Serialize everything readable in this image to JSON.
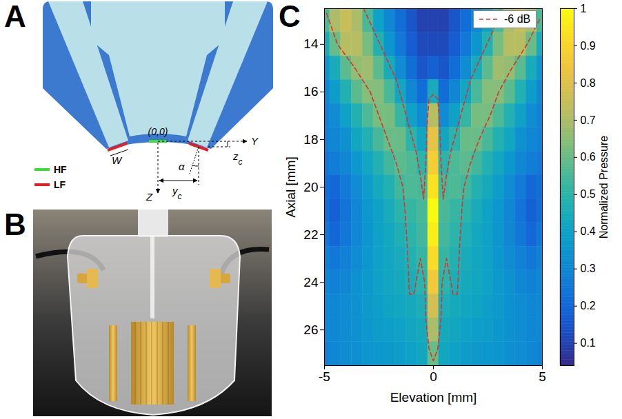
{
  "panel_labels": [
    "A",
    "B",
    "C"
  ],
  "diagram": {
    "labels": {
      "origin": "(0,0)",
      "y_axis": "Y",
      "z_axis": "Z",
      "width": "W",
      "angle": "α",
      "y_offset": {
        "base": "y",
        "sub": "c"
      },
      "z_offset": {
        "base": "z",
        "sub": "c"
      }
    },
    "legend": [
      {
        "name": "HF",
        "color": "#3ddc3d"
      },
      {
        "name": "LF",
        "color": "#e0202a"
      }
    ]
  },
  "chart_data": {
    "type": "heatmap",
    "xlabel": "Elevation [mm]",
    "ylabel": "Axial [mm]",
    "xlim": [
      -5,
      5
    ],
    "xticks": [
      -5,
      0,
      5
    ],
    "ylim": [
      27.5,
      12.5
    ],
    "yticks": [
      14,
      16,
      18,
      20,
      22,
      24,
      26
    ],
    "x": [
      -5,
      -4.5,
      -4,
      -3.5,
      -3,
      -2.5,
      -2,
      -1.5,
      -1,
      -0.5,
      0,
      0.5,
      1,
      1.5,
      2,
      2.5,
      3,
      3.5,
      4,
      4.5,
      5
    ],
    "y": [
      13,
      14,
      15,
      16,
      17,
      18,
      19,
      20,
      21,
      22,
      23,
      24,
      25,
      26,
      27
    ],
    "values": [
      [
        0.55,
        0.7,
        0.75,
        0.7,
        0.55,
        0.4,
        0.3,
        0.22,
        0.15,
        0.1,
        0.1,
        0.1,
        0.15,
        0.22,
        0.3,
        0.4,
        0.55,
        0.7,
        0.75,
        0.7,
        0.55
      ],
      [
        0.45,
        0.6,
        0.72,
        0.72,
        0.62,
        0.48,
        0.35,
        0.25,
        0.17,
        0.12,
        0.12,
        0.12,
        0.17,
        0.25,
        0.35,
        0.48,
        0.62,
        0.72,
        0.72,
        0.6,
        0.45
      ],
      [
        0.35,
        0.45,
        0.58,
        0.66,
        0.68,
        0.58,
        0.45,
        0.32,
        0.22,
        0.15,
        0.18,
        0.15,
        0.22,
        0.32,
        0.45,
        0.58,
        0.68,
        0.66,
        0.58,
        0.45,
        0.35
      ],
      [
        0.3,
        0.38,
        0.48,
        0.58,
        0.64,
        0.64,
        0.55,
        0.42,
        0.3,
        0.22,
        0.45,
        0.22,
        0.3,
        0.42,
        0.55,
        0.64,
        0.64,
        0.58,
        0.48,
        0.38,
        0.3
      ],
      [
        0.28,
        0.32,
        0.4,
        0.48,
        0.56,
        0.62,
        0.62,
        0.52,
        0.4,
        0.32,
        0.72,
        0.32,
        0.4,
        0.52,
        0.62,
        0.62,
        0.56,
        0.48,
        0.4,
        0.32,
        0.28
      ],
      [
        0.28,
        0.3,
        0.34,
        0.42,
        0.48,
        0.55,
        0.6,
        0.6,
        0.5,
        0.42,
        0.82,
        0.42,
        0.5,
        0.6,
        0.6,
        0.55,
        0.48,
        0.42,
        0.34,
        0.3,
        0.28
      ],
      [
        0.25,
        0.27,
        0.3,
        0.36,
        0.42,
        0.48,
        0.54,
        0.58,
        0.56,
        0.5,
        0.88,
        0.5,
        0.56,
        0.58,
        0.54,
        0.48,
        0.42,
        0.36,
        0.3,
        0.27,
        0.25
      ],
      [
        0.22,
        0.2,
        0.26,
        0.32,
        0.38,
        0.44,
        0.48,
        0.54,
        0.56,
        0.55,
        0.94,
        0.55,
        0.56,
        0.54,
        0.48,
        0.44,
        0.38,
        0.32,
        0.26,
        0.2,
        0.22
      ],
      [
        0.22,
        0.18,
        0.24,
        0.3,
        0.36,
        0.4,
        0.45,
        0.5,
        0.52,
        0.55,
        1,
        0.55,
        0.52,
        0.5,
        0.45,
        0.4,
        0.36,
        0.3,
        0.24,
        0.18,
        0.22
      ],
      [
        0.25,
        0.2,
        0.25,
        0.3,
        0.35,
        0.4,
        0.43,
        0.47,
        0.5,
        0.54,
        0.97,
        0.54,
        0.5,
        0.47,
        0.43,
        0.4,
        0.35,
        0.3,
        0.25,
        0.2,
        0.25
      ],
      [
        0.28,
        0.25,
        0.28,
        0.32,
        0.36,
        0.4,
        0.42,
        0.45,
        0.48,
        0.52,
        0.92,
        0.52,
        0.48,
        0.45,
        0.42,
        0.4,
        0.36,
        0.32,
        0.28,
        0.25,
        0.28
      ],
      [
        0.3,
        0.28,
        0.3,
        0.34,
        0.37,
        0.4,
        0.42,
        0.44,
        0.46,
        0.5,
        0.86,
        0.5,
        0.46,
        0.44,
        0.42,
        0.4,
        0.37,
        0.34,
        0.3,
        0.28,
        0.3
      ],
      [
        0.3,
        0.3,
        0.32,
        0.34,
        0.37,
        0.39,
        0.41,
        0.42,
        0.44,
        0.46,
        0.78,
        0.46,
        0.44,
        0.42,
        0.41,
        0.39,
        0.37,
        0.34,
        0.32,
        0.3,
        0.3
      ],
      [
        0.3,
        0.3,
        0.32,
        0.34,
        0.36,
        0.38,
        0.39,
        0.4,
        0.42,
        0.44,
        0.7,
        0.44,
        0.42,
        0.4,
        0.39,
        0.38,
        0.36,
        0.34,
        0.32,
        0.3,
        0.3
      ],
      [
        0.28,
        0.3,
        0.32,
        0.33,
        0.35,
        0.36,
        0.37,
        0.38,
        0.4,
        0.42,
        0.6,
        0.42,
        0.4,
        0.38,
        0.37,
        0.36,
        0.35,
        0.33,
        0.32,
        0.3,
        0.28
      ]
    ],
    "colorbar": {
      "label": "Normalized Pressure",
      "lim": [
        0.04,
        1
      ],
      "ticks": [
        0.1,
        0.2,
        0.3,
        0.4,
        0.5,
        0.6,
        0.7,
        0.8,
        0.9,
        1
      ]
    },
    "contours": [
      {
        "name": "-6 dB",
        "color": "#e0302a",
        "line_style": "dashed",
        "paths": [
          [
            [
              -4.9,
              12.7
            ],
            [
              -4.4,
              14
            ],
            [
              -3.6,
              15
            ],
            [
              -2.9,
              16
            ],
            [
              -2.5,
              17
            ],
            [
              -2.1,
              18
            ],
            [
              -1.7,
              19
            ],
            [
              -1.4,
              20
            ],
            [
              -1.3,
              21
            ],
            [
              -1.2,
              22.5
            ],
            [
              -1.1,
              24.5
            ],
            [
              -0.9,
              24.5
            ],
            [
              -0.6,
              23
            ],
            [
              -0.4,
              24
            ],
            [
              -0.35,
              25.5
            ],
            [
              -0.2,
              26.8
            ],
            [
              0,
              27.3
            ],
            [
              0.2,
              26.8
            ],
            [
              0.35,
              25.5
            ],
            [
              0.4,
              24
            ],
            [
              0.6,
              23
            ],
            [
              0.9,
              24.5
            ],
            [
              1.1,
              24.5
            ],
            [
              1.2,
              22.5
            ],
            [
              1.3,
              21
            ],
            [
              1.4,
              20
            ],
            [
              1.7,
              19
            ],
            [
              2.1,
              18
            ],
            [
              2.6,
              17
            ],
            [
              3,
              16
            ],
            [
              3.6,
              15
            ],
            [
              4.3,
              14
            ],
            [
              4.9,
              12.9
            ]
          ],
          [
            [
              -3.2,
              12.5
            ],
            [
              -2.7,
              13.5
            ],
            [
              -2.2,
              14.5
            ],
            [
              -1.7,
              15.5
            ],
            [
              -1.4,
              16.5
            ],
            [
              -1.1,
              17.5
            ],
            [
              -0.8,
              18.5
            ],
            [
              -0.6,
              19.5
            ],
            [
              -0.45,
              20.5
            ],
            [
              -0.35,
              19
            ],
            [
              -0.3,
              17.5
            ],
            [
              -0.2,
              16.3
            ],
            [
              0,
              16.1
            ],
            [
              0.2,
              16.3
            ],
            [
              0.3,
              17.5
            ],
            [
              0.35,
              19
            ],
            [
              0.45,
              20.5
            ],
            [
              0.6,
              19.5
            ],
            [
              0.8,
              18.5
            ],
            [
              1.1,
              17.5
            ],
            [
              1.4,
              16.5
            ],
            [
              1.7,
              15.5
            ],
            [
              2.2,
              14.5
            ],
            [
              2.7,
              13.5
            ],
            [
              3.1,
              12.5
            ]
          ]
        ]
      }
    ],
    "legend": "top-right"
  }
}
